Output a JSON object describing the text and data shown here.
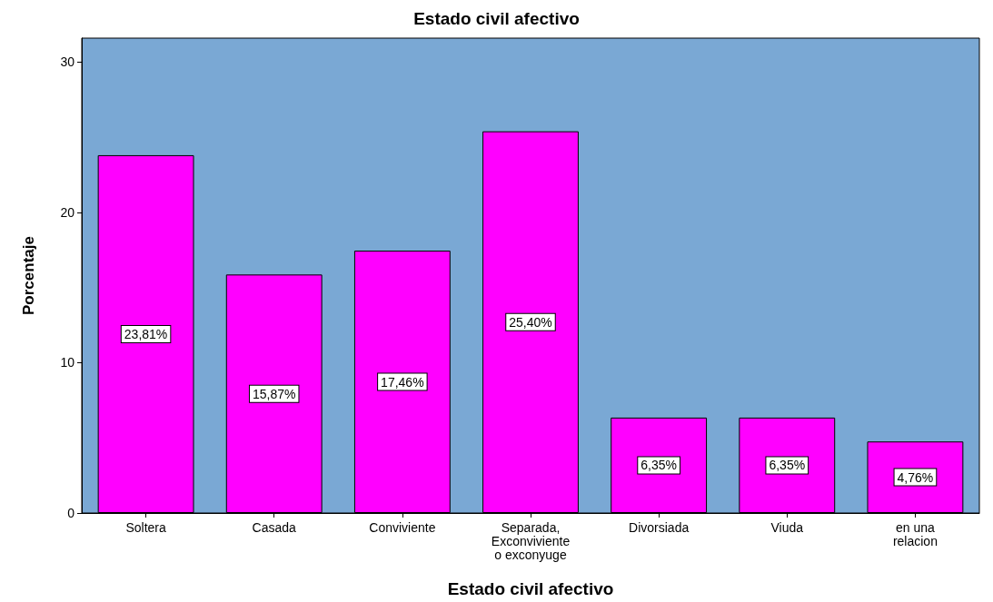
{
  "chart_data": {
    "type": "bar",
    "title": "Estado civil afectivo",
    "xlabel": "Estado civil afectivo",
    "ylabel": "Porcentaje",
    "categories": [
      "Soltera",
      "Casada",
      "Conviviente",
      "Separada,\nExconviviente\no exconyuge",
      "Divorsiada",
      "Viuda",
      "en una\nrelacion"
    ],
    "values": [
      23.81,
      15.87,
      17.46,
      25.4,
      6.35,
      6.35,
      4.76
    ],
    "value_labels": [
      "23,81%",
      "15,87%",
      "17,46%",
      "25,40%",
      "6,35%",
      "6,35%",
      "4,76%"
    ],
    "color": "#ff00ff",
    "ylim": [
      0,
      31.6
    ],
    "yticks": [
      0,
      10,
      20,
      30
    ],
    "grid": false
  }
}
